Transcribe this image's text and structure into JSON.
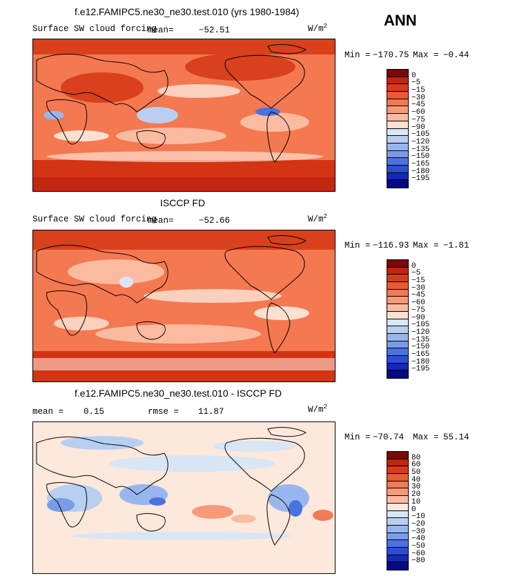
{
  "season": "ANN",
  "units": "W/m",
  "units_exp": "2",
  "panels": [
    {
      "title": "f.e12.FAMIPC5.ne30_ne30.test.010 (yrs 1980-1984)",
      "field": "Surface SW cloud forcing",
      "mean_label": "mean=",
      "mean_value": "−52.51",
      "min_label": "Min =",
      "min_value": "−170.75",
      "max_label": "Max =",
      "max_value": "−0.44"
    },
    {
      "title": "ISCCP FD",
      "field": "Surface SW cloud forcing",
      "mean_label": "mean=",
      "mean_value": "−52.66",
      "min_label": "Min =",
      "min_value": "−116.93",
      "max_label": "Max =",
      "max_value": "−1.81"
    },
    {
      "title": "f.e12.FAMIPC5.ne30_ne30.test.010 - ISCCP FD",
      "mean_label": "mean =",
      "mean_value": "0.15",
      "rmse_label": "rmse =",
      "rmse_value": "11.87",
      "min_label": "Min =",
      "min_value": "−70.74",
      "max_label": "Max =",
      "max_value": "55.14"
    }
  ],
  "chart_data": [
    {
      "type": "heatmap",
      "title": "f.e12.FAMIPC5.ne30_ne30.test.010 (yrs 1980-1984)",
      "subtitle": "Surface SW cloud forcing",
      "units": "W/m2",
      "mean": -52.51,
      "min": -170.75,
      "max": -0.44,
      "colorbar_levels": [
        "0",
        "−5",
        "−15",
        "−30",
        "−45",
        "−60",
        "−75",
        "−90",
        "−105",
        "−120",
        "−135",
        "−150",
        "−165",
        "−180",
        "−195"
      ],
      "colorbar_colors": [
        "#7a0a05",
        "#c0260f",
        "#d93a1a",
        "#e85a30",
        "#f27a54",
        "#f89a78",
        "#fbbba0",
        "#fde0d0",
        "#d8e6f6",
        "#b8cff2",
        "#98b6ee",
        "#789ce8",
        "#4a72e0",
        "#2a4fd4",
        "#1428b8",
        "#060a80"
      ]
    },
    {
      "type": "heatmap",
      "title": "ISCCP FD",
      "subtitle": "Surface SW cloud forcing",
      "units": "W/m2",
      "mean": -52.66,
      "min": -116.93,
      "max": -1.81,
      "colorbar_levels": [
        "0",
        "−5",
        "−15",
        "−30",
        "−45",
        "−60",
        "−75",
        "−90",
        "−105",
        "−120",
        "−135",
        "−150",
        "−165",
        "−180",
        "−195"
      ],
      "colorbar_colors": [
        "#7a0a05",
        "#c0260f",
        "#d93a1a",
        "#e85a30",
        "#f27a54",
        "#f89a78",
        "#fbbba0",
        "#fde0d0",
        "#d8e6f6",
        "#b8cff2",
        "#98b6ee",
        "#789ce8",
        "#4a72e0",
        "#2a4fd4",
        "#1428b8",
        "#060a80"
      ]
    },
    {
      "type": "heatmap",
      "title": "f.e12.FAMIPC5.ne30_ne30.test.010 - ISCCP FD",
      "units": "W/m2",
      "mean": 0.15,
      "rmse": 11.87,
      "min": -70.74,
      "max": 55.14,
      "colorbar_levels": [
        "80",
        "60",
        "50",
        "40",
        "30",
        "20",
        "10",
        "0",
        "−10",
        "−20",
        "−30",
        "−40",
        "−50",
        "−60",
        "−80"
      ],
      "colorbar_colors": [
        "#7a0a05",
        "#c0260f",
        "#d93a1a",
        "#e85a30",
        "#f27a54",
        "#f89a78",
        "#fbbba0",
        "#fde8dc",
        "#d8e6f6",
        "#b8cff2",
        "#98b6ee",
        "#789ce8",
        "#4a72e0",
        "#2a4fd4",
        "#1428b8",
        "#060a80"
      ]
    }
  ]
}
